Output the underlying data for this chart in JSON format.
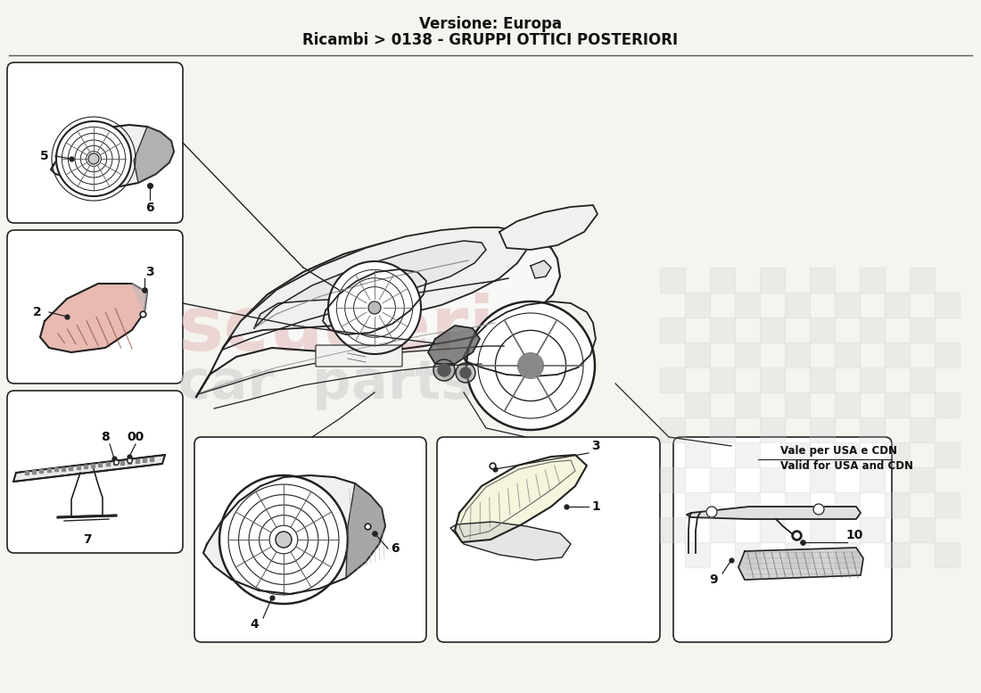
{
  "title_line1": "Versione: Europa",
  "title_line2": "Ricambi > 0138 - GRUPPI OTTICI POSTERIORI",
  "background_color": "#f5f5f0",
  "title_fontsize": 12,
  "box_color": "#222222",
  "line_color": "#222222",
  "watermark_color": "#e8c8c8",
  "watermark_color2": "#d0d0d0",
  "box_note_line1": "Vale per USA e CDN",
  "box_note_line2": "Valid for USA and CDN"
}
